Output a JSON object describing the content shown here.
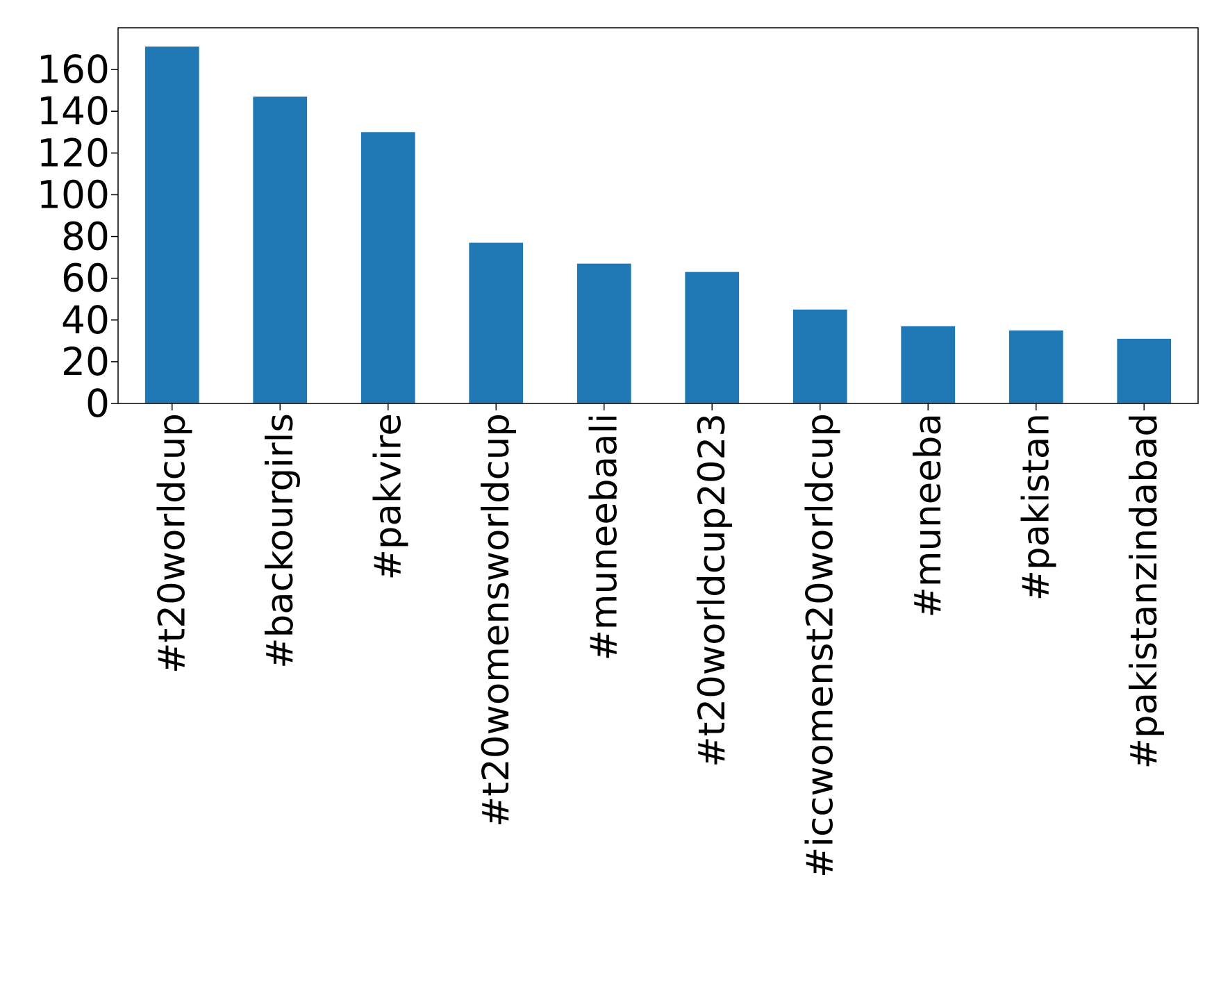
{
  "chart_data": {
    "type": "bar",
    "title": "",
    "xlabel": "",
    "ylabel": "",
    "categories": [
      "#t20worldcup",
      "#backourgirls",
      "#pakvire",
      "#t20womensworldcup",
      "#muneebaali",
      "#t20worldcup2023",
      "#iccwomenst20worldcup",
      "#muneeba",
      "#pakistan",
      "#pakistanzindabad"
    ],
    "values": [
      171,
      147,
      130,
      77,
      67,
      63,
      45,
      37,
      35,
      31
    ],
    "ylim": [
      0,
      180
    ],
    "yticks": [
      0,
      20,
      40,
      60,
      80,
      100,
      120,
      140,
      160
    ],
    "grid": false,
    "legend": "none",
    "bar_color": "#1f77b4"
  }
}
